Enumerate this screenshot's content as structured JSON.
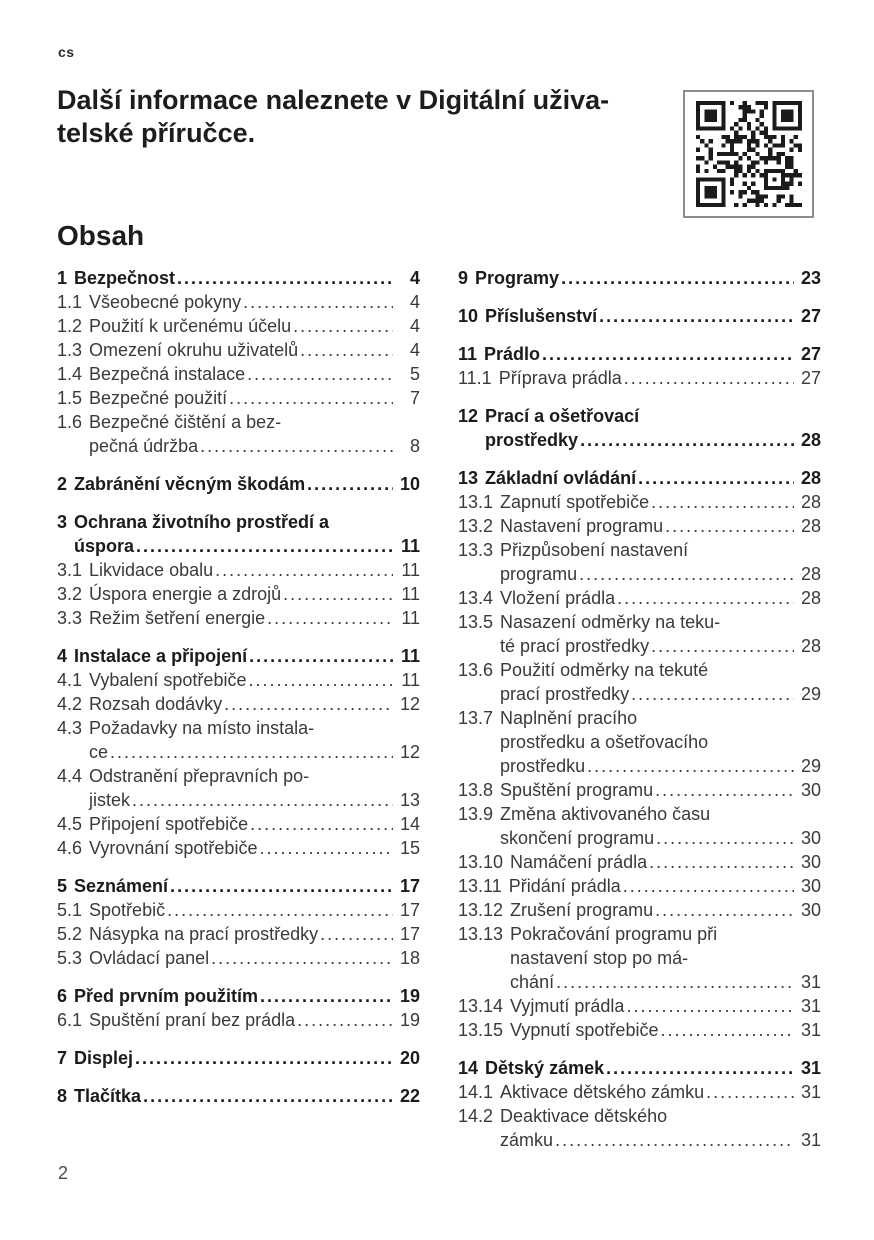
{
  "page": {
    "language_code": "cs",
    "page_number": "2",
    "ink_color": "#1d1d1d"
  },
  "header": {
    "heading_lines": [
      "Další informace naleznete v Digitální uživa-",
      "telské příručce."
    ]
  },
  "toc": {
    "title": "Obsah",
    "columns": {
      "left": [
        {
          "bold": true,
          "num": "1",
          "lines": [
            "Bezpečnost"
          ],
          "page": "4"
        },
        {
          "bold": false,
          "num": "1.1",
          "lines": [
            "Všeobecné pokyny"
          ],
          "page": "4"
        },
        {
          "bold": false,
          "num": "1.2",
          "lines": [
            "Použití k určenému účelu"
          ],
          "page": "4"
        },
        {
          "bold": false,
          "num": "1.3",
          "lines": [
            "Omezení okruhu uživatelů"
          ],
          "page": "4"
        },
        {
          "bold": false,
          "num": "1.4",
          "lines": [
            "Bezpečná instalace"
          ],
          "page": "5"
        },
        {
          "bold": false,
          "num": "1.5",
          "lines": [
            "Bezpečné použití"
          ],
          "page": "7"
        },
        {
          "bold": false,
          "num": "1.6",
          "lines": [
            "Bezpečné čištění a bez-",
            "pečná údržba"
          ],
          "page": "8"
        },
        {
          "bold": true,
          "num": "2",
          "lines": [
            "Zabránění věcným škodám"
          ],
          "page": "10"
        },
        {
          "bold": true,
          "num": "3",
          "lines": [
            "Ochrana životního prostředí a",
            "úspora"
          ],
          "page": "11"
        },
        {
          "bold": false,
          "num": "3.1",
          "lines": [
            "Likvidace obalu"
          ],
          "page": "11"
        },
        {
          "bold": false,
          "num": "3.2",
          "lines": [
            "Úspora energie a zdrojů"
          ],
          "page": "11"
        },
        {
          "bold": false,
          "num": "3.3",
          "lines": [
            "Režim šetření energie"
          ],
          "page": "11"
        },
        {
          "bold": true,
          "num": "4",
          "lines": [
            "Instalace a připojení"
          ],
          "page": "11"
        },
        {
          "bold": false,
          "num": "4.1",
          "lines": [
            "Vybalení spotřebiče"
          ],
          "page": "11"
        },
        {
          "bold": false,
          "num": "4.2",
          "lines": [
            "Rozsah dodávky"
          ],
          "page": "12"
        },
        {
          "bold": false,
          "num": "4.3",
          "lines": [
            "Požadavky na místo instala-",
            "ce"
          ],
          "page": "12"
        },
        {
          "bold": false,
          "num": "4.4",
          "lines": [
            "Odstranění přepravních po-",
            "jistek"
          ],
          "page": "13"
        },
        {
          "bold": false,
          "num": "4.5",
          "lines": [
            "Připojení spotřebiče"
          ],
          "page": "14"
        },
        {
          "bold": false,
          "num": "4.6",
          "lines": [
            "Vyrovnání spotřebiče"
          ],
          "page": "15"
        },
        {
          "bold": true,
          "num": "5",
          "lines": [
            "Seznámení"
          ],
          "page": "17"
        },
        {
          "bold": false,
          "num": "5.1",
          "lines": [
            "Spotřebič"
          ],
          "page": "17"
        },
        {
          "bold": false,
          "num": "5.2",
          "lines": [
            "Násypka na prací prostředky"
          ],
          "page": "17"
        },
        {
          "bold": false,
          "num": "5.3",
          "lines": [
            "Ovládací panel"
          ],
          "page": "18"
        },
        {
          "bold": true,
          "num": "6",
          "lines": [
            "Před prvním použitím"
          ],
          "page": "19"
        },
        {
          "bold": false,
          "num": "6.1",
          "lines": [
            "Spuštění praní bez prádla"
          ],
          "page": "19"
        },
        {
          "bold": true,
          "num": "7",
          "lines": [
            "Displej"
          ],
          "page": "20"
        },
        {
          "bold": true,
          "num": "8",
          "lines": [
            "Tlačítka"
          ],
          "page": "22"
        }
      ],
      "right": [
        {
          "bold": true,
          "num": "9",
          "lines": [
            "Programy"
          ],
          "page": "23"
        },
        {
          "bold": true,
          "num": "10",
          "lines": [
            "Příslušenství"
          ],
          "page": "27"
        },
        {
          "bold": true,
          "num": "11",
          "lines": [
            "Prádlo"
          ],
          "page": "27"
        },
        {
          "bold": false,
          "num": "11.1",
          "lines": [
            "Příprava prádla"
          ],
          "page": "27"
        },
        {
          "bold": true,
          "num": "12",
          "lines": [
            "Prací a ošetřovací",
            "prostředky"
          ],
          "page": "28"
        },
        {
          "bold": true,
          "num": "13",
          "lines": [
            "Základní ovládání"
          ],
          "page": "28"
        },
        {
          "bold": false,
          "num": "13.1",
          "lines": [
            "Zapnutí spotřebiče"
          ],
          "page": "28"
        },
        {
          "bold": false,
          "num": "13.2",
          "lines": [
            "Nastavení programu"
          ],
          "page": "28"
        },
        {
          "bold": false,
          "num": "13.3",
          "lines": [
            "Přizpůsobení nastavení",
            "programu"
          ],
          "page": "28"
        },
        {
          "bold": false,
          "num": "13.4",
          "lines": [
            "Vložení prádla"
          ],
          "page": "28"
        },
        {
          "bold": false,
          "num": "13.5",
          "lines": [
            "Nasazení odměrky na teku-",
            "té prací prostředky"
          ],
          "page": "28"
        },
        {
          "bold": false,
          "num": "13.6",
          "lines": [
            "Použití odměrky na tekuté",
            "prací prostředky"
          ],
          "page": "29"
        },
        {
          "bold": false,
          "num": "13.7",
          "lines": [
            "Naplnění pracího",
            "prostředku a ošetřovacího",
            "prostředku"
          ],
          "page": "29"
        },
        {
          "bold": false,
          "num": "13.8",
          "lines": [
            "Spuštění programu"
          ],
          "page": "30"
        },
        {
          "bold": false,
          "num": "13.9",
          "lines": [
            "Změna aktivovaného času",
            "skončení programu"
          ],
          "page": "30"
        },
        {
          "bold": false,
          "num": "13.10",
          "lines": [
            "Namáčení prádla"
          ],
          "page": "30"
        },
        {
          "bold": false,
          "num": "13.11",
          "lines": [
            "Přidání prádla"
          ],
          "page": "30"
        },
        {
          "bold": false,
          "num": "13.12",
          "lines": [
            "Zrušení programu"
          ],
          "page": "30"
        },
        {
          "bold": false,
          "num": "13.13",
          "lines": [
            "Pokračování programu při",
            "nastavení stop po má-",
            "chání"
          ],
          "page": "31"
        },
        {
          "bold": false,
          "num": "13.14",
          "lines": [
            "Vyjmutí prádla"
          ],
          "page": "31"
        },
        {
          "bold": false,
          "num": "13.15",
          "lines": [
            "Vypnutí spotřebiče"
          ],
          "page": "31"
        },
        {
          "bold": true,
          "num": "14",
          "lines": [
            "Dětský zámek"
          ],
          "page": "31"
        },
        {
          "bold": false,
          "num": "14.1",
          "lines": [
            "Aktivace dětského zámku"
          ],
          "page": "31"
        },
        {
          "bold": false,
          "num": "14.2",
          "lines": [
            "Deaktivace dětského",
            "zámku"
          ],
          "page": "31"
        }
      ]
    }
  }
}
